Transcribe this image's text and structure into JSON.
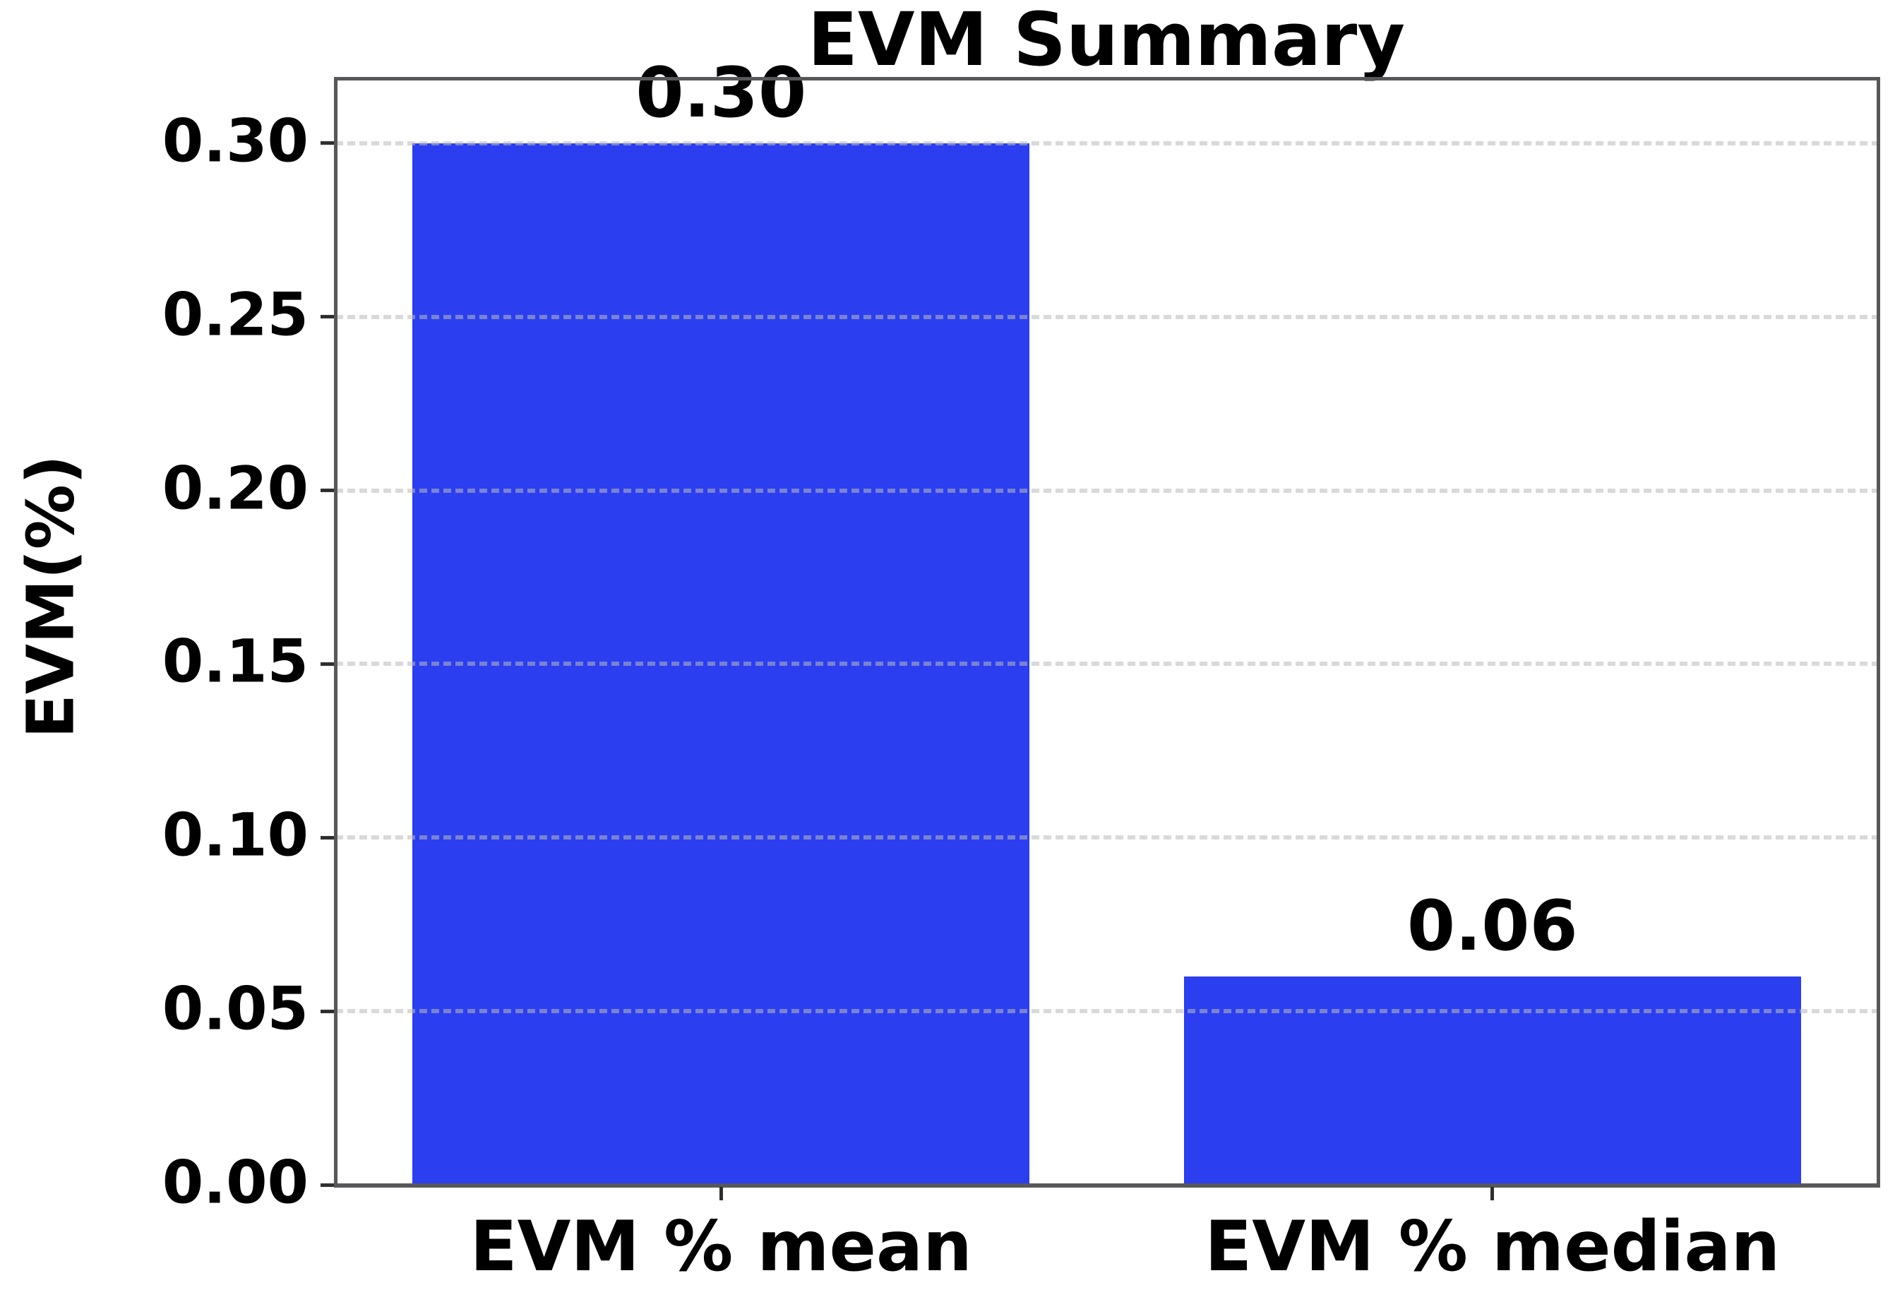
{
  "chart_data": {
    "type": "bar",
    "title": "EVM Summary",
    "xlabel": "",
    "ylabel": "EVM(%)",
    "categories": [
      "EVM % mean",
      "EVM % median"
    ],
    "values": [
      0.3,
      0.06
    ],
    "value_labels": [
      "0.30",
      "0.06"
    ],
    "yticks": [
      0.0,
      0.05,
      0.1,
      0.15,
      0.2,
      0.25,
      0.3
    ],
    "ytick_labels": [
      "0.00",
      "0.05",
      "0.10",
      "0.15",
      "0.20",
      "0.25",
      "0.30"
    ],
    "ylim": [
      0,
      0.3187
    ],
    "bar_color": "#2b3ef0",
    "grid": "horizontal-dashed",
    "grid_color": "rgba(186,186,186,0.55)",
    "spine_color": "#58585a",
    "legend": null
  }
}
